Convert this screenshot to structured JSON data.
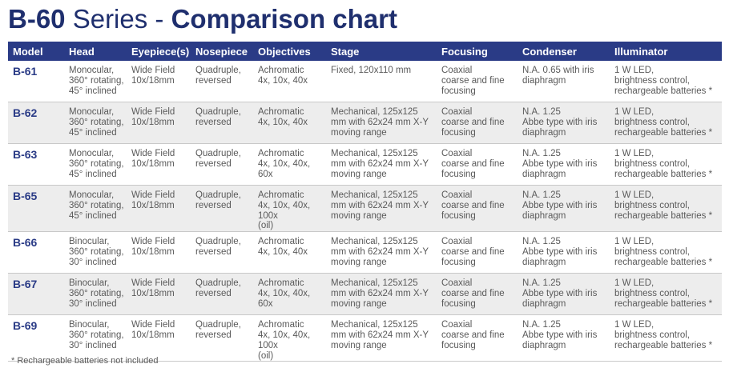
{
  "title": {
    "model": "B-60",
    "series": "Series - ",
    "chart": "Comparison chart"
  },
  "columns": [
    "Model",
    "Head",
    "Eyepiece(s)",
    "Nosepiece",
    "Objectives",
    "Stage",
    "Focusing",
    "Condenser",
    "Illuminator"
  ],
  "rows": [
    {
      "model": "B-61",
      "head": [
        "Monocular,",
        "360° rotating,",
        "45° inclined"
      ],
      "eyepiece": [
        "Wide Field",
        "10x/18mm"
      ],
      "nosepiece": [
        "Quadruple,",
        "reversed"
      ],
      "objectives": [
        "Achromatic",
        "4x, 10x, 40x"
      ],
      "stage": [
        "Fixed, 120x110 mm"
      ],
      "focusing": [
        "Coaxial",
        "coarse and fine",
        "focusing"
      ],
      "condenser": [
        "N.A. 0.65 with iris",
        "diaphragm"
      ],
      "illuminator": [
        "1 W LED,",
        "brightness control,",
        "rechargeable batteries *"
      ]
    },
    {
      "model": "B-62",
      "head": [
        "Monocular,",
        "360° rotating,",
        "45° inclined"
      ],
      "eyepiece": [
        "Wide Field",
        "10x/18mm"
      ],
      "nosepiece": [
        "Quadruple,",
        "reversed"
      ],
      "objectives": [
        "Achromatic",
        "4x, 10x, 40x"
      ],
      "stage": [
        "Mechanical, 125x125",
        "mm with 62x24 mm X-Y",
        "moving range"
      ],
      "focusing": [
        "Coaxial",
        "coarse and fine",
        "focusing"
      ],
      "condenser": [
        "N.A. 1.25",
        "Abbe type with iris",
        "diaphragm"
      ],
      "illuminator": [
        "1 W LED,",
        "brightness control,",
        "rechargeable batteries *"
      ]
    },
    {
      "model": "B-63",
      "head": [
        "Monocular,",
        "360° rotating,",
        "45° inclined"
      ],
      "eyepiece": [
        "Wide Field",
        "10x/18mm"
      ],
      "nosepiece": [
        "Quadruple,",
        "reversed"
      ],
      "objectives": [
        "Achromatic",
        "4x, 10x, 40x, 60x"
      ],
      "stage": [
        "Mechanical, 125x125",
        "mm with 62x24 mm X-Y",
        "moving range"
      ],
      "focusing": [
        "Coaxial",
        "coarse and fine",
        "focusing"
      ],
      "condenser": [
        "N.A. 1.25",
        "Abbe type with iris",
        "diaphragm"
      ],
      "illuminator": [
        "1 W LED,",
        "brightness control,",
        "rechargeable batteries *"
      ]
    },
    {
      "model": "B-65",
      "head": [
        "Monocular,",
        "360° rotating,",
        "45° inclined"
      ],
      "eyepiece": [
        "Wide Field",
        "10x/18mm"
      ],
      "nosepiece": [
        "Quadruple,",
        "reversed"
      ],
      "objectives": [
        "Achromatic",
        "4x, 10x, 40x, 100x",
        "(oil)"
      ],
      "stage": [
        "Mechanical, 125x125",
        "mm with 62x24 mm X-Y",
        "moving range"
      ],
      "focusing": [
        "Coaxial",
        "coarse and fine",
        "focusing"
      ],
      "condenser": [
        "N.A. 1.25",
        "Abbe type with iris",
        "diaphragm"
      ],
      "illuminator": [
        "1 W LED,",
        "brightness control,",
        "rechargeable batteries *"
      ]
    },
    {
      "model": "B-66",
      "head": [
        "Binocular,",
        "360° rotating,",
        "30° inclined"
      ],
      "eyepiece": [
        "Wide Field",
        "10x/18mm"
      ],
      "nosepiece": [
        "Quadruple,",
        "reversed"
      ],
      "objectives": [
        "Achromatic",
        "4x, 10x, 40x"
      ],
      "stage": [
        "Mechanical, 125x125",
        "mm with 62x24 mm X-Y",
        "moving range"
      ],
      "focusing": [
        "Coaxial",
        "coarse and fine",
        "focusing"
      ],
      "condenser": [
        "N.A. 1.25",
        "Abbe type with iris",
        "diaphragm"
      ],
      "illuminator": [
        "1 W LED,",
        "brightness control,",
        "rechargeable batteries *"
      ]
    },
    {
      "model": "B-67",
      "head": [
        "Binocular,",
        "360° rotating,",
        "30° inclined"
      ],
      "eyepiece": [
        "Wide Field",
        "10x/18mm"
      ],
      "nosepiece": [
        "Quadruple,",
        "reversed"
      ],
      "objectives": [
        "Achromatic",
        "4x, 10x, 40x, 60x"
      ],
      "stage": [
        "Mechanical, 125x125",
        "mm with 62x24 mm X-Y",
        "moving range"
      ],
      "focusing": [
        "Coaxial",
        "coarse and fine",
        "focusing"
      ],
      "condenser": [
        "N.A. 1.25",
        "Abbe type with iris",
        "diaphragm"
      ],
      "illuminator": [
        "1 W LED,",
        "brightness control,",
        "rechargeable batteries *"
      ]
    },
    {
      "model": "B-69",
      "head": [
        "Binocular,",
        "360° rotating,",
        "30° inclined"
      ],
      "eyepiece": [
        "Wide Field",
        "10x/18mm"
      ],
      "nosepiece": [
        "Quadruple,",
        "reversed"
      ],
      "objectives": [
        "Achromatic",
        "4x, 10x, 40x, 100x",
        "(oil)"
      ],
      "stage": [
        "Mechanical, 125x125",
        "mm with 62x24 mm X-Y",
        "moving range"
      ],
      "focusing": [
        "Coaxial",
        "coarse and fine",
        "focusing"
      ],
      "condenser": [
        "N.A. 1.25",
        "Abbe type with iris",
        "diaphragm"
      ],
      "illuminator": [
        "1 W LED,",
        "brightness control,",
        "rechargeable batteries *"
      ]
    }
  ],
  "footnote": "* Rechargeable batteries not included",
  "colors": {
    "brand": "#1f2f6e",
    "header_bg": "#2a3b86",
    "row_alt_bg": "#ededed",
    "body_text": "#5a5a5a"
  }
}
